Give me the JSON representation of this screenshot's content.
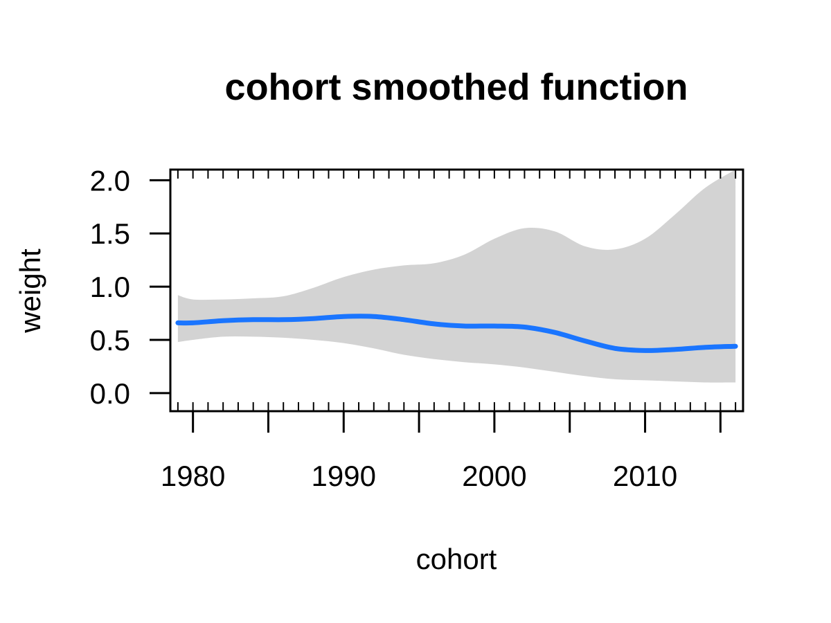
{
  "chart_data": {
    "type": "line",
    "title": "cohort smoothed function",
    "xlabel": "cohort",
    "ylabel": "weight",
    "xlim": [
      1978.5,
      2016.5
    ],
    "ylim": [
      -0.17,
      2.1
    ],
    "x_ticks": [
      {
        "value": 1980,
        "label": "1980"
      },
      {
        "value": 1990,
        "label": "1990"
      },
      {
        "value": 2000,
        "label": "2000"
      },
      {
        "value": 2010,
        "label": "2010"
      }
    ],
    "y_ticks": [
      {
        "value": 0.0,
        "label": "0.0"
      },
      {
        "value": 0.5,
        "label": "0.5"
      },
      {
        "value": 1.0,
        "label": "1.0"
      },
      {
        "value": 1.5,
        "label": "1.5"
      },
      {
        "value": 2.0,
        "label": "2.0"
      }
    ],
    "rug_years": [
      1979,
      1980,
      1981,
      1982,
      1983,
      1984,
      1985,
      1986,
      1987,
      1988,
      1989,
      1990,
      1991,
      1992,
      1993,
      1994,
      1995,
      1996,
      1997,
      1998,
      1999,
      2000,
      2001,
      2002,
      2003,
      2004,
      2005,
      2006,
      2007,
      2008,
      2009,
      2010,
      2011,
      2012,
      2013,
      2014,
      2015,
      2016
    ],
    "grid": false,
    "legend": "none",
    "colors": {
      "line": "#1a75ff",
      "band": "#d3d3d3"
    },
    "series": [
      {
        "x": [
          1979,
          1980,
          1982,
          1984,
          1986,
          1988,
          1990,
          1992,
          1994,
          1996,
          1998,
          2000,
          2002,
          2004,
          2006,
          2008,
          2010,
          2012,
          2014,
          2016
        ],
        "y": [
          0.66,
          0.66,
          0.68,
          0.69,
          0.69,
          0.7,
          0.72,
          0.72,
          0.69,
          0.65,
          0.63,
          0.63,
          0.62,
          0.57,
          0.49,
          0.42,
          0.4,
          0.41,
          0.43,
          0.44
        ],
        "lower": [
          0.48,
          0.5,
          0.53,
          0.53,
          0.52,
          0.5,
          0.47,
          0.42,
          0.36,
          0.32,
          0.29,
          0.27,
          0.24,
          0.2,
          0.16,
          0.13,
          0.12,
          0.11,
          0.1,
          0.1
        ],
        "upper": [
          0.92,
          0.88,
          0.88,
          0.89,
          0.91,
          0.99,
          1.09,
          1.16,
          1.2,
          1.22,
          1.3,
          1.45,
          1.55,
          1.52,
          1.38,
          1.35,
          1.45,
          1.68,
          1.93,
          2.1
        ]
      }
    ]
  }
}
